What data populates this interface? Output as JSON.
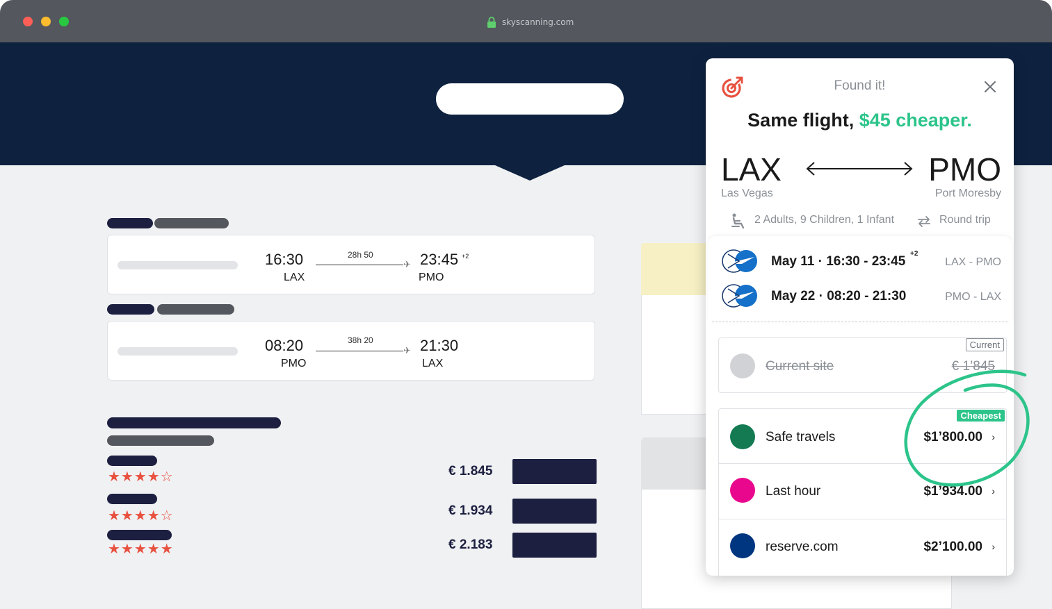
{
  "browser": {
    "url": "skyscanning.com"
  },
  "flights": [
    {
      "depart_time": "16:30",
      "depart_code": "LAX",
      "duration": "28h 50",
      "arrive_time": "23:45",
      "arrive_sup": "+2",
      "arrive_code": "PMO"
    },
    {
      "depart_time": "08:20",
      "depart_code": "PMO",
      "duration": "38h 20",
      "arrive_time": "21:30",
      "arrive_sup": "",
      "arrive_code": "LAX"
    }
  ],
  "results": [
    {
      "stars": "★★★★☆",
      "price": "€ 1.845"
    },
    {
      "stars": "★★★★☆",
      "price": "€ 1.934"
    },
    {
      "stars": "★★★★★",
      "price": "€ 2.183"
    }
  ],
  "popup": {
    "status": "Found it!",
    "headline_prefix": "Same flight, ",
    "headline_highlight": "$45 cheaper.",
    "origin_code": "LAX",
    "origin_city": "Las Vegas",
    "dest_code": "PMO",
    "dest_city": "Port Moresby",
    "passengers": "2 Adults, 9 Children, 1 Infant",
    "trip_type": "Round trip",
    "legs": [
      {
        "text": "May 11 · 16:30 - 23:45",
        "sup": "+2",
        "route": "LAX - PMO"
      },
      {
        "text": "May 22 · 08:20 - 21:30",
        "sup": "",
        "route": "PMO - LAX"
      }
    ],
    "current": {
      "tag": "Current",
      "name": "Current site",
      "price": "€ 1’845"
    },
    "offers": [
      {
        "name": "Safe travels",
        "price": "$1’800.00",
        "tag": "Cheapest",
        "color": "#137a52"
      },
      {
        "name": "Last hour",
        "price": "$1’934.00",
        "tag": "",
        "color": "#e9088d"
      },
      {
        "name": "reserve.com",
        "price": "$2’100.00",
        "tag": "",
        "color": "#003580"
      }
    ]
  }
}
